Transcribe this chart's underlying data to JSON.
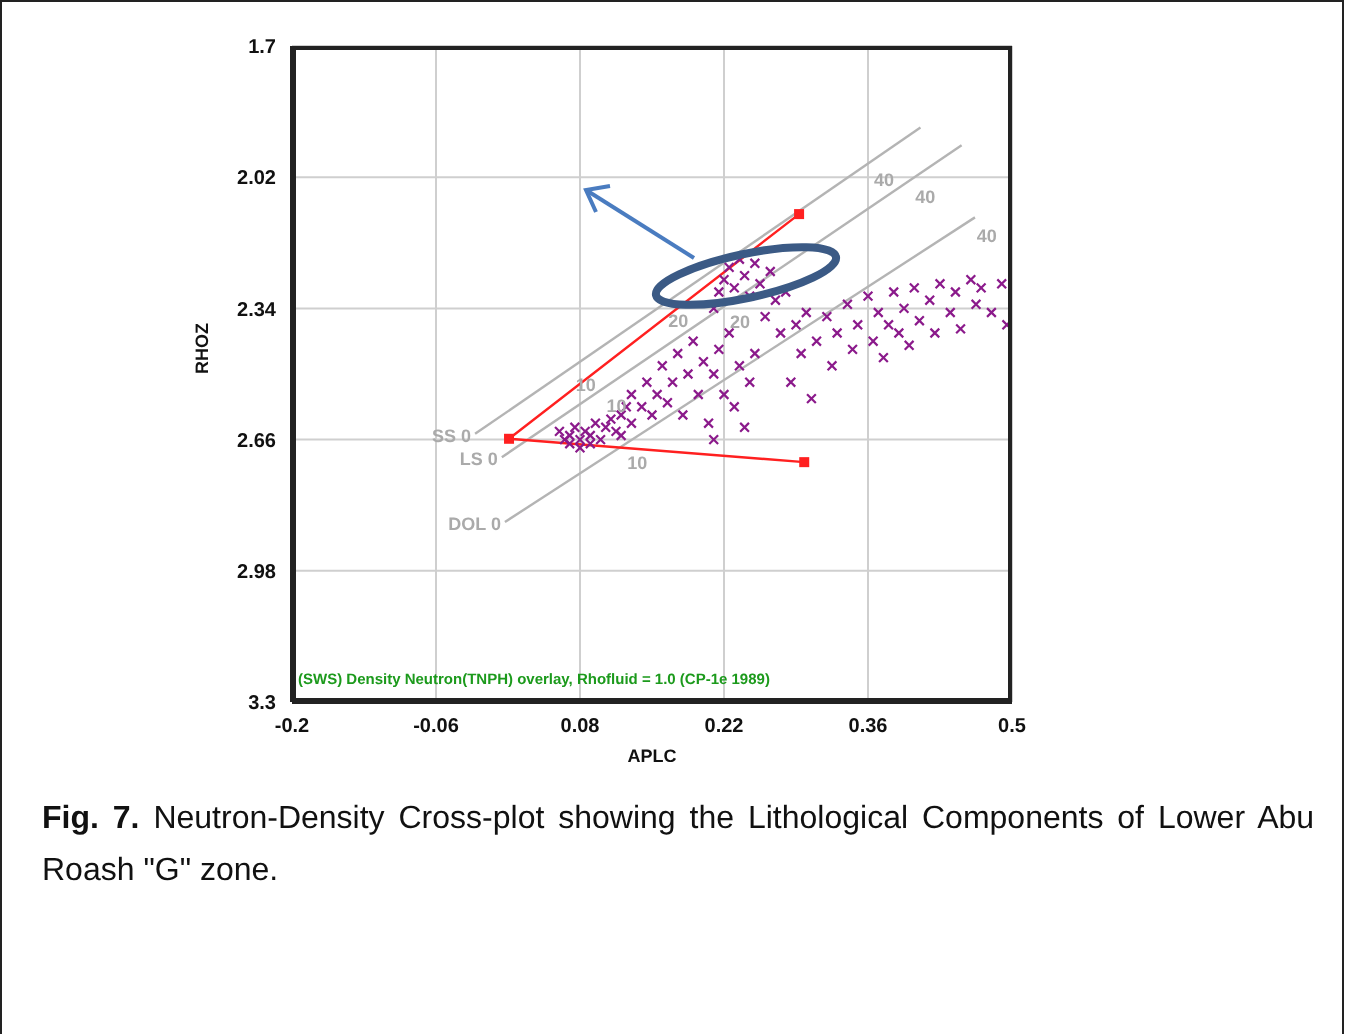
{
  "chart_data": {
    "type": "scatter",
    "xlabel": "APLC",
    "ylabel": "RHOZ",
    "xlim": [
      -0.2,
      0.5
    ],
    "xticks": [
      -0.2,
      -0.06,
      0.08,
      0.22,
      0.36,
      0.5
    ],
    "ylim": [
      3.3,
      1.7
    ],
    "yticks": [
      1.7,
      2.02,
      2.34,
      2.66,
      2.98,
      3.3
    ],
    "grid": true,
    "series": [
      {
        "type": "line",
        "color": "#b4b4b4",
        "x": [
          -0.022,
          0.411
        ],
        "values": [
          2.646,
          1.899
        ]
      },
      {
        "type": "line",
        "color": "#b4b4b4",
        "x": [
          0.004,
          0.451
        ],
        "values": [
          2.703,
          1.942
        ]
      },
      {
        "type": "line",
        "color": "#b4b4b4",
        "x": [
          0.007,
          0.464
        ],
        "values": [
          2.861,
          2.118
        ]
      },
      {
        "type": "line",
        "color": "#ff2020",
        "marker": "square",
        "x": [
          0.293,
          0.011,
          0.298
        ],
        "values": [
          2.11,
          2.658,
          2.715
        ]
      },
      {
        "type": "scatter",
        "color": "#8b1a8b",
        "marker": "cross",
        "x": [
          0.06,
          0.065,
          0.07,
          0.07,
          0.075,
          0.08,
          0.08,
          0.085,
          0.09,
          0.09,
          0.095,
          0.1,
          0.105,
          0.11,
          0.115,
          0.12,
          0.12,
          0.125,
          0.13,
          0.13,
          0.14,
          0.145,
          0.15,
          0.155,
          0.16,
          0.165,
          0.17,
          0.175,
          0.18,
          0.185,
          0.19,
          0.195,
          0.2,
          0.205,
          0.21,
          0.21,
          0.215,
          0.22,
          0.225,
          0.23,
          0.235,
          0.24,
          0.245,
          0.25,
          0.21,
          0.215,
          0.22,
          0.225,
          0.23,
          0.235,
          0.24,
          0.245,
          0.25,
          0.255,
          0.26,
          0.265,
          0.27,
          0.275,
          0.28,
          0.285,
          0.29,
          0.295,
          0.3,
          0.305,
          0.31,
          0.32,
          0.325,
          0.33,
          0.34,
          0.345,
          0.35,
          0.36,
          0.365,
          0.37,
          0.375,
          0.38,
          0.385,
          0.39,
          0.395,
          0.4,
          0.405,
          0.41,
          0.42,
          0.425,
          0.43,
          0.44,
          0.445,
          0.45,
          0.46,
          0.465,
          0.47,
          0.48,
          0.49,
          0.495
        ],
        "values": [
          2.64,
          2.66,
          2.65,
          2.67,
          2.63,
          2.66,
          2.68,
          2.64,
          2.65,
          2.67,
          2.62,
          2.66,
          2.63,
          2.61,
          2.64,
          2.6,
          2.65,
          2.58,
          2.62,
          2.55,
          2.58,
          2.52,
          2.6,
          2.55,
          2.48,
          2.57,
          2.52,
          2.45,
          2.6,
          2.5,
          2.42,
          2.55,
          2.47,
          2.62,
          2.5,
          2.66,
          2.44,
          2.55,
          2.4,
          2.58,
          2.48,
          2.63,
          2.52,
          2.45,
          2.34,
          2.3,
          2.27,
          2.24,
          2.29,
          2.22,
          2.26,
          2.31,
          2.23,
          2.28,
          2.36,
          2.25,
          2.32,
          2.4,
          2.3,
          2.52,
          2.38,
          2.45,
          2.35,
          2.56,
          2.42,
          2.36,
          2.48,
          2.4,
          2.33,
          2.44,
          2.38,
          2.31,
          2.42,
          2.35,
          2.46,
          2.38,
          2.3,
          2.4,
          2.34,
          2.43,
          2.29,
          2.37,
          2.32,
          2.4,
          2.28,
          2.35,
          2.3,
          2.39,
          2.27,
          2.33,
          2.29,
          2.35,
          2.28,
          2.38
        ]
      }
    ],
    "annotations": [
      {
        "text": "SS 0",
        "x": -0.022,
        "y": 2.646
      },
      {
        "text": "LS 0",
        "x": 0.004,
        "y": 2.703
      },
      {
        "text": "DOL 0",
        "x": 0.007,
        "y": 2.861
      },
      {
        "text": "10",
        "x": 0.07,
        "y": 2.487
      },
      {
        "text": "10",
        "x": 0.1,
        "y": 2.54
      },
      {
        "text": "10",
        "x": 0.12,
        "y": 2.677
      },
      {
        "text": "20",
        "x": 0.16,
        "y": 2.332
      },
      {
        "text": "20",
        "x": 0.22,
        "y": 2.335
      },
      {
        "text": "40",
        "x": 0.36,
        "y": 1.987
      },
      {
        "text": "40",
        "x": 0.4,
        "y": 2.029
      },
      {
        "text": "40",
        "x": 0.46,
        "y": 2.124
      },
      "(SWS) Density Neutron(TNPH) overlay, Rhofluid = 1.0 (CP-1e 1989)",
      "Fig. 7. Neutron-Density Cross-plot showing the Lithological Components of  Lower Abu Roash \"G\" zone."
    ]
  }
}
